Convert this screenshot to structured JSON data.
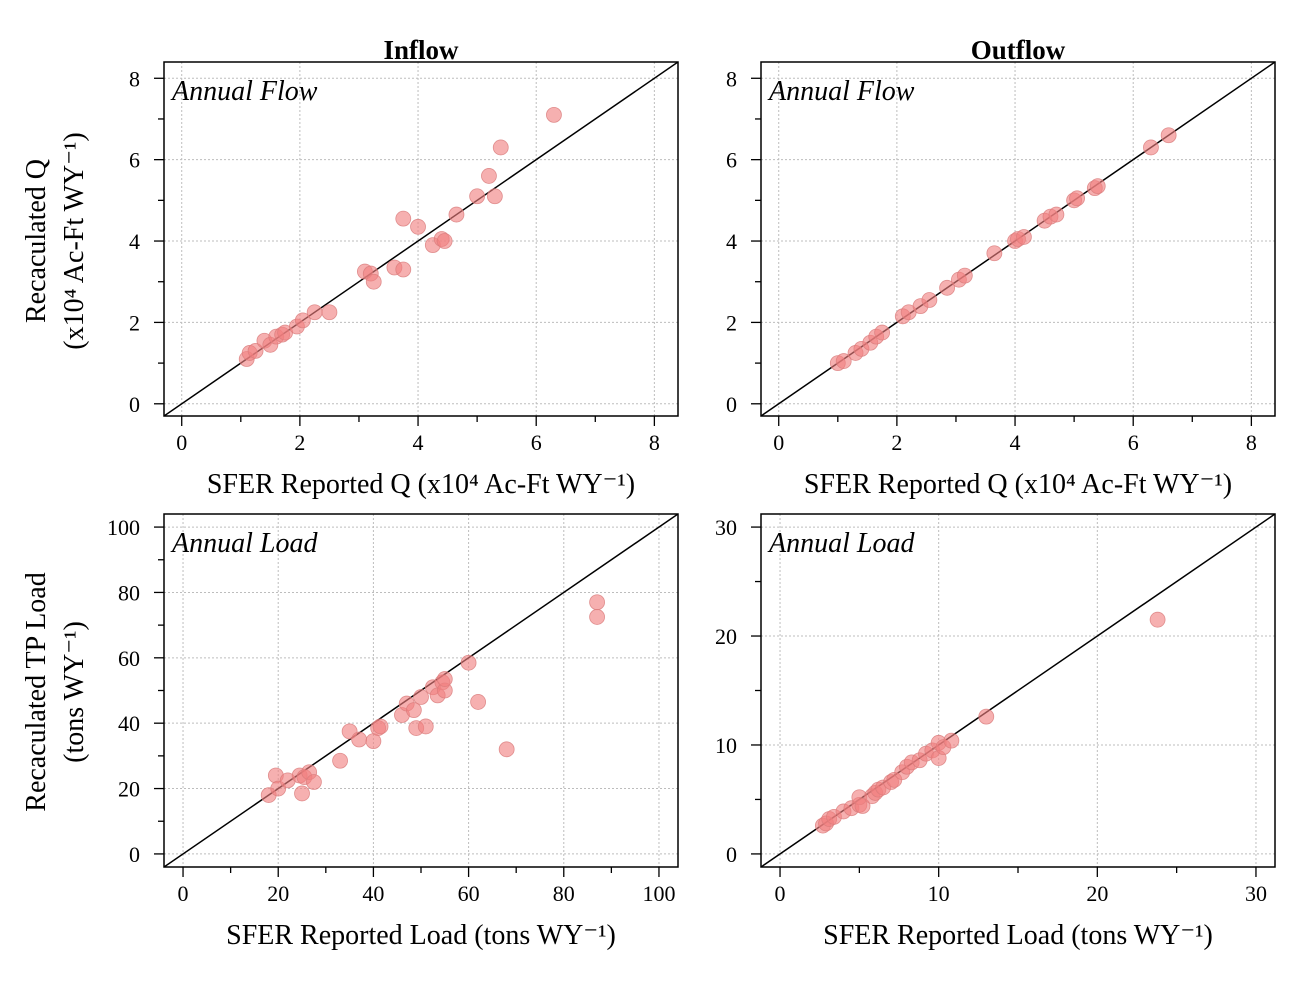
{
  "figure": {
    "colors": {
      "point_fill": "#f08080",
      "point_stroke": "#d97c7c",
      "grid": "#bdbdbd"
    },
    "column_titles": [
      "Inflow",
      "Outflow"
    ],
    "row_ylabels": [
      [
        "Recaculated Q",
        "(x10⁴ Ac-Ft WY⁻¹)"
      ],
      [
        "Recaculated TP Load",
        "(tons WY⁻¹)"
      ]
    ]
  },
  "chart_data": [
    {
      "type": "scatter",
      "panel_label": "Annual Flow",
      "xlabel": "SFER Reported Q (x10⁴ Ac-Ft WY⁻¹)",
      "xlim": [
        -0.3,
        8.4
      ],
      "ylim": [
        -0.3,
        8.4
      ],
      "xticks": [
        0,
        2,
        4,
        6,
        8
      ],
      "yticks": [
        0,
        2,
        4,
        6,
        8
      ],
      "minor_step": 1,
      "reference_line": "1:1",
      "x": [
        1.1,
        1.15,
        1.25,
        1.4,
        1.5,
        1.6,
        1.7,
        1.75,
        1.95,
        2.05,
        2.25,
        2.5,
        3.1,
        3.2,
        3.25,
        3.6,
        3.75,
        3.75,
        4.0,
        4.25,
        4.4,
        4.45,
        4.65,
        5.0,
        5.2,
        5.3,
        5.4,
        6.3
      ],
      "y": [
        1.1,
        1.25,
        1.3,
        1.55,
        1.45,
        1.65,
        1.7,
        1.75,
        1.9,
        2.05,
        2.25,
        2.25,
        3.25,
        3.2,
        3.0,
        3.35,
        3.3,
        4.55,
        4.35,
        3.9,
        4.05,
        4.0,
        4.65,
        5.1,
        5.6,
        5.1,
        6.3,
        7.1
      ]
    },
    {
      "type": "scatter",
      "panel_label": "Annual Flow",
      "xlabel": "SFER Reported Q (x10⁴ Ac-Ft WY⁻¹)",
      "xlim": [
        -0.3,
        8.4
      ],
      "ylim": [
        -0.3,
        8.4
      ],
      "xticks": [
        0,
        2,
        4,
        6,
        8
      ],
      "yticks": [
        0,
        2,
        4,
        6,
        8
      ],
      "minor_step": 1,
      "reference_line": "1:1",
      "x": [
        1.0,
        1.1,
        1.3,
        1.4,
        1.55,
        1.65,
        1.75,
        2.1,
        2.2,
        2.4,
        2.55,
        2.85,
        3.05,
        3.15,
        3.65,
        4.0,
        4.05,
        4.15,
        4.5,
        4.6,
        4.7,
        5.0,
        5.05,
        5.35,
        5.4,
        6.3,
        6.6
      ],
      "y": [
        1.0,
        1.05,
        1.25,
        1.35,
        1.5,
        1.65,
        1.75,
        2.15,
        2.25,
        2.4,
        2.55,
        2.85,
        3.05,
        3.15,
        3.7,
        4.0,
        4.05,
        4.1,
        4.5,
        4.6,
        4.65,
        5.0,
        5.05,
        5.3,
        5.35,
        6.3,
        6.6
      ]
    },
    {
      "type": "scatter",
      "panel_label": "Annual Load",
      "xlabel": "SFER Reported Load (tons WY⁻¹)",
      "xlim": [
        -4,
        104
      ],
      "ylim": [
        -4,
        104
      ],
      "xticks": [
        0,
        20,
        40,
        60,
        80,
        100
      ],
      "yticks": [
        0,
        20,
        40,
        60,
        80,
        100
      ],
      "minor_step": 10,
      "reference_line": "1:1",
      "x": [
        18,
        19.5,
        20,
        22,
        24.5,
        25,
        25.5,
        26.5,
        27.5,
        33,
        35,
        37,
        40,
        41,
        41.5,
        46,
        47,
        48.5,
        49,
        50,
        51,
        52.5,
        53.5,
        54.5,
        55,
        55,
        60,
        62,
        68,
        87,
        87
      ],
      "y": [
        18,
        24,
        20,
        22.5,
        24,
        18.5,
        23.5,
        25,
        22,
        28.5,
        37.5,
        35,
        34.5,
        38.5,
        39,
        42.5,
        46,
        44,
        38.5,
        48,
        39,
        51,
        48.5,
        52.5,
        50,
        53.5,
        58.5,
        46.5,
        32,
        72.5,
        77
      ]
    },
    {
      "type": "scatter",
      "panel_label": "Annual Load",
      "xlabel": "SFER Reported Load (tons WY⁻¹)",
      "xlim": [
        -1.2,
        31.2
      ],
      "ylim": [
        -1.2,
        31.2
      ],
      "xticks": [
        0,
        10,
        20,
        30
      ],
      "yticks": [
        0,
        10,
        20,
        30
      ],
      "minor_step": 5,
      "reference_line": "1:1",
      "x": [
        2.7,
        2.9,
        3.1,
        3.4,
        4.0,
        4.5,
        5.0,
        5.0,
        5.2,
        5.8,
        6.0,
        6.2,
        6.5,
        7.0,
        7.2,
        7.7,
        8.0,
        8.3,
        8.8,
        9.2,
        9.6,
        10.0,
        10.0,
        10.3,
        10.8,
        13.0,
        23.8
      ],
      "y": [
        2.6,
        2.8,
        3.2,
        3.4,
        3.9,
        4.2,
        4.5,
        5.2,
        4.4,
        5.3,
        5.6,
        5.9,
        6.1,
        6.6,
        6.8,
        7.5,
        8.0,
        8.4,
        8.6,
        9.2,
        9.5,
        8.8,
        10.2,
        9.8,
        10.4,
        12.6,
        21.5
      ]
    }
  ]
}
